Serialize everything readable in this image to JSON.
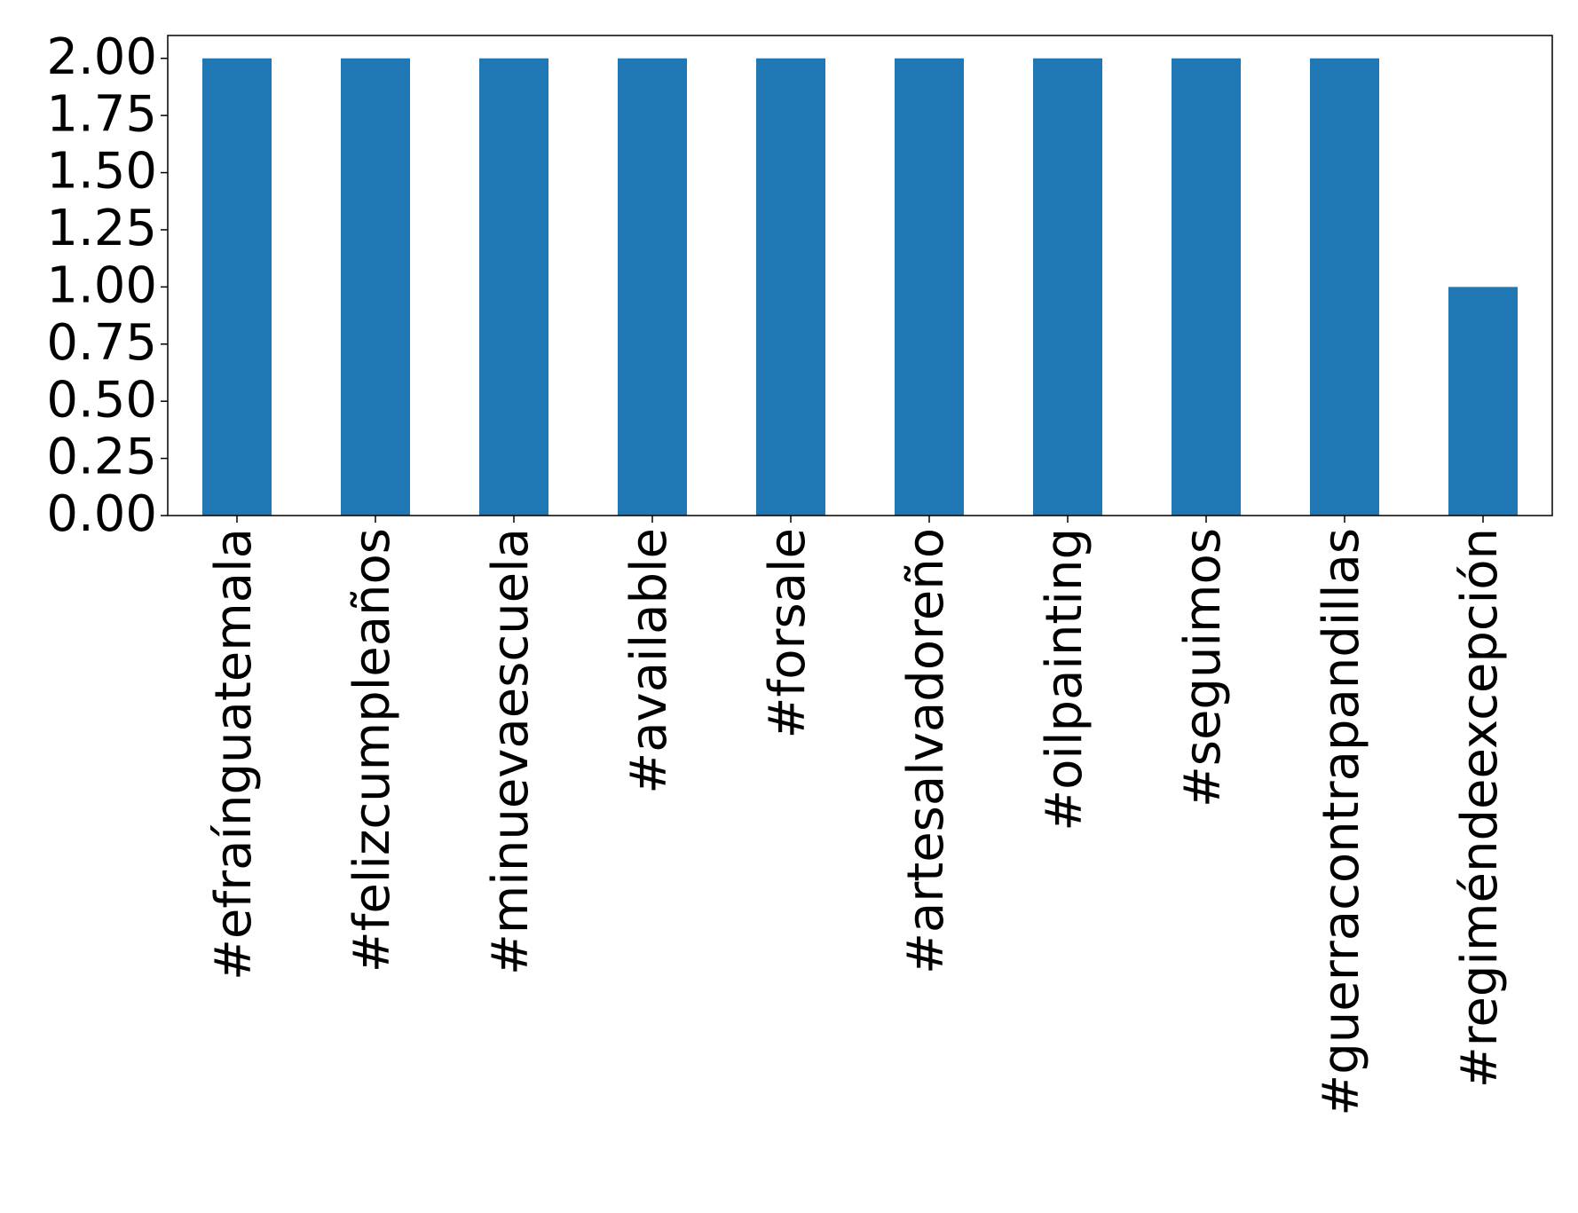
{
  "chart_data": {
    "type": "bar",
    "categories": [
      "#efraínguatemala",
      "#felizcumpleaños",
      "#minuevaescuela",
      "#available",
      "#forsale",
      "#artesalvadoreño",
      "#oilpainting",
      "#seguimos",
      "#guerracontrapandillas",
      "#regiméndeexcepción"
    ],
    "values": [
      2,
      2,
      2,
      2,
      2,
      2,
      2,
      2,
      2,
      1
    ],
    "color": "#1f77b4",
    "ylim": [
      0,
      2.1
    ],
    "yticks": [
      {
        "value": 0,
        "label": "0.00"
      },
      0.25,
      {
        "value": 0.5,
        "label": "0.50"
      },
      0.75,
      {
        "value": 1,
        "label": "1.00"
      },
      1.25,
      {
        "value": 1.5,
        "label": "1.50"
      },
      1.75,
      {
        "value": 2,
        "label": "2.00"
      }
    ],
    "grid": false
  }
}
